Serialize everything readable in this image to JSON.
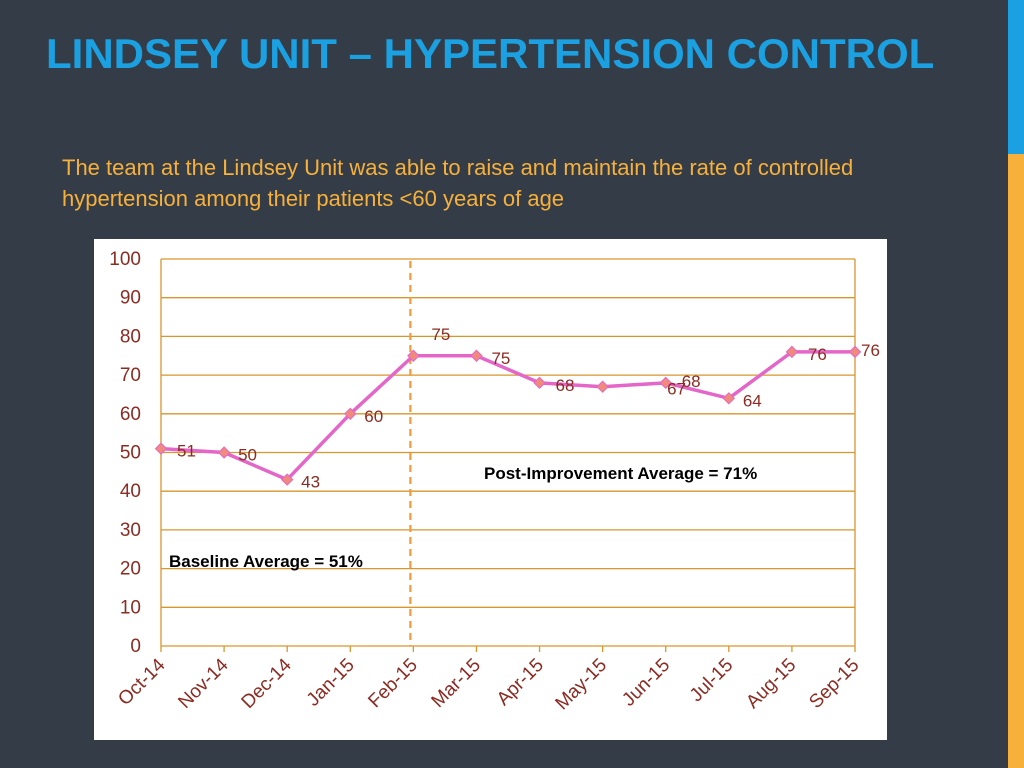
{
  "slide": {
    "title": "LINDSEY UNIT – HYPERTENSION CONTROL",
    "subtitle": "The team at the Lindsey Unit was able to raise and maintain the rate of controlled hypertension among their patients <60 years of age"
  },
  "colors": {
    "background": "#343c48",
    "title": "#1ba1e2",
    "subtitle": "#f7b13a",
    "accent_top": "#1ba1e2",
    "accent_bottom": "#f7b13a",
    "gridline": "#d9962b",
    "series_line": "#e466c8",
    "marker": "#f08a7a",
    "label_text": "#8b2b22",
    "annotation_text": "#000000"
  },
  "chart_data": {
    "type": "line",
    "categories": [
      "Oct-14",
      "Nov-14",
      "Dec-14",
      "Jan-15",
      "Feb-15",
      "Mar-15",
      "Apr-15",
      "May-15",
      "Jun-15",
      "Jul-15",
      "Aug-15",
      "Sep-15"
    ],
    "x": [
      0,
      1,
      2,
      3,
      4,
      5,
      6,
      7,
      8,
      9,
      10,
      11
    ],
    "y": [
      51,
      50,
      43,
      60,
      75,
      75,
      68,
      67,
      68,
      64,
      76,
      76
    ],
    "point_labels": [
      {
        "text": "51",
        "x": 0,
        "y": 51
      },
      {
        "text": "50",
        "x": 1,
        "y": 50
      },
      {
        "text": "43",
        "x": 2,
        "y": 43
      },
      {
        "text": "60",
        "x": 3,
        "y": 60
      },
      {
        "text": "75",
        "x": 4,
        "y": 75
      },
      {
        "text": "75",
        "x": 5,
        "y": 75
      },
      {
        "text": "68",
        "x": 6,
        "y": 68
      },
      {
        "text": "67",
        "x": 7.8,
        "y": 67
      },
      {
        "text": "68",
        "x": 8,
        "y": 68
      },
      {
        "text": "64",
        "x": 9,
        "y": 64
      },
      {
        "text": "76",
        "x": 10,
        "y": 76
      },
      {
        "text": "76",
        "x": 11,
        "y": 76
      }
    ],
    "ylim": [
      0,
      100
    ],
    "yticks": [
      0,
      10,
      20,
      30,
      40,
      50,
      60,
      70,
      80,
      90,
      100
    ],
    "grid": true,
    "divider_x": 4,
    "annotations": [
      {
        "text": "Baseline Average = 51%"
      },
      {
        "text": "Post-Improvement Average = 71%"
      }
    ],
    "title": "",
    "xlabel": "",
    "ylabel": ""
  }
}
